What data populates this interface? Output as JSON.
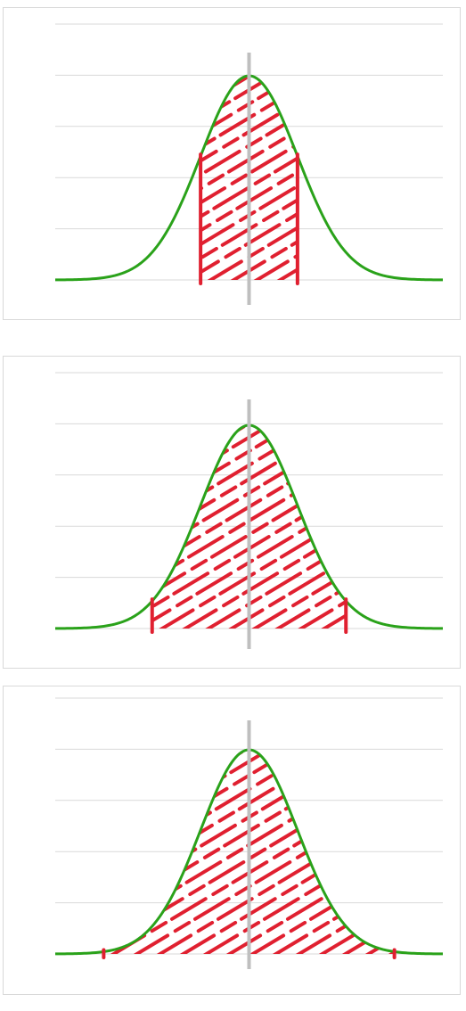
{
  "chart_data": [
    {
      "type": "area",
      "description_curve": "normal-distribution",
      "x_range_sd": [
        -4,
        4
      ],
      "gridline_count": 5,
      "shaded_interval_sd": [
        -1,
        1
      ],
      "mean_line": true,
      "colors": {
        "curve": "#2aa21a",
        "shading": "#e02030",
        "mean": "#bfbfbf",
        "grid": "#d9d9d9"
      }
    },
    {
      "type": "area",
      "description_curve": "normal-distribution",
      "x_range_sd": [
        -4,
        4
      ],
      "gridline_count": 5,
      "shaded_interval_sd": [
        -2,
        2
      ],
      "mean_line": true,
      "colors": {
        "curve": "#2aa21a",
        "shading": "#e02030",
        "mean": "#bfbfbf",
        "grid": "#d9d9d9"
      }
    },
    {
      "type": "area",
      "description_curve": "normal-distribution",
      "x_range_sd": [
        -4,
        4
      ],
      "gridline_count": 5,
      "shaded_interval_sd": [
        -3,
        3
      ],
      "mean_line": true,
      "colors": {
        "curve": "#2aa21a",
        "shading": "#e02030",
        "mean": "#bfbfbf",
        "grid": "#d9d9d9"
      }
    }
  ]
}
